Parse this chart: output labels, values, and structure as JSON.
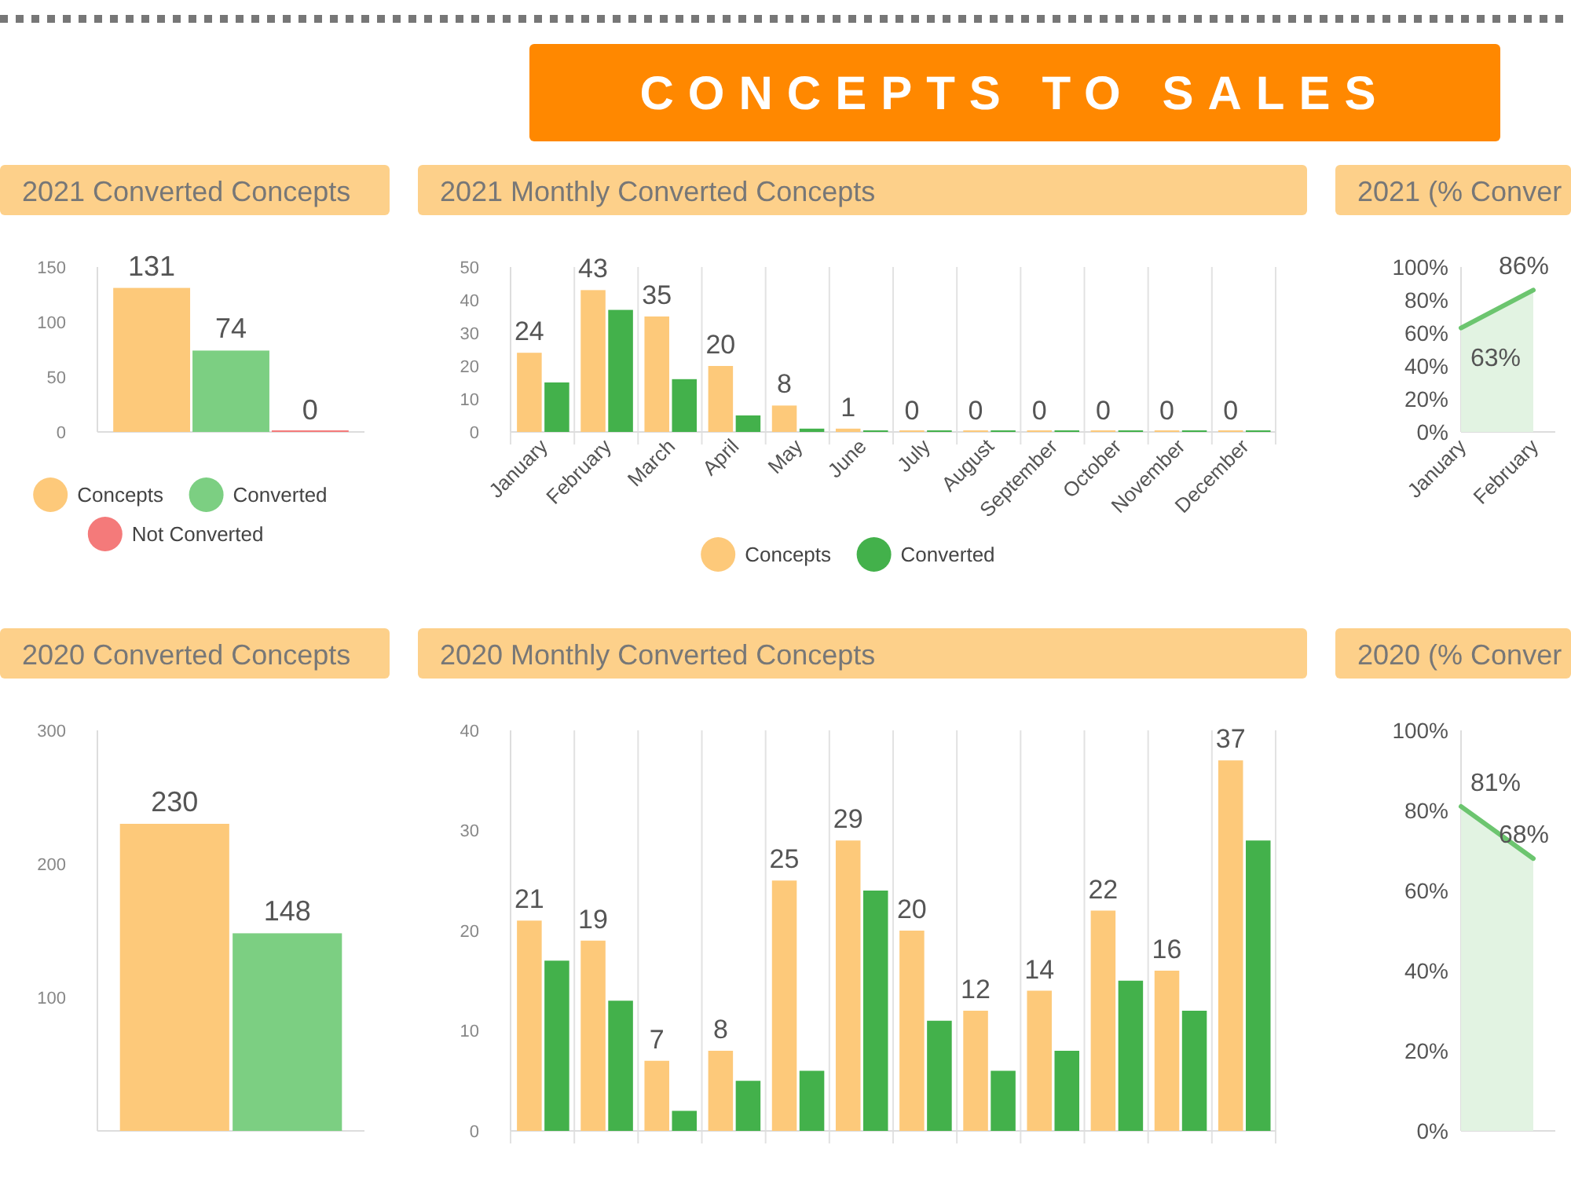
{
  "chart_data": [
    {
      "type": "other",
      "title": "CONCEPTS TO SALES"
    },
    {
      "type": "bar",
      "title": "2021 Converted Concepts",
      "categories": [
        null
      ],
      "series": [
        {
          "name": "Concepts",
          "color": "#fdc97a",
          "values": [
            131
          ],
          "value_labels": [
            "131"
          ]
        },
        {
          "name": "Converted",
          "color": "#7ccf82",
          "values": [
            74
          ],
          "value_labels": [
            "74"
          ]
        },
        {
          "name": "Not Converted",
          "color": "#f47a7a",
          "values": [
            0
          ],
          "value_labels": [
            "0"
          ]
        }
      ],
      "ylim": [
        0,
        150
      ],
      "yticks": [
        0,
        50,
        100,
        150
      ],
      "legend": "bottom"
    },
    {
      "type": "bar",
      "title": "2021 Monthly Converted Concepts",
      "categories": [
        "January",
        "February",
        "March",
        "April",
        "May",
        "June",
        "July",
        "August",
        "September",
        "October",
        "November",
        "December"
      ],
      "series": [
        {
          "name": "Concepts",
          "color": "#fdc97a",
          "values": [
            24,
            43,
            35,
            20,
            8,
            1,
            0,
            0,
            0,
            0,
            0,
            0
          ],
          "value_labels": [
            "24",
            "43",
            "35",
            "20",
            "8",
            "1",
            "0",
            "0",
            "0",
            "0",
            "0",
            "0"
          ]
        },
        {
          "name": "Converted",
          "color": "#43b14b",
          "values": [
            15,
            37,
            16,
            5,
            1,
            0,
            0,
            0,
            0,
            0,
            0,
            0
          ]
        }
      ],
      "ylim": [
        0,
        50
      ],
      "yticks": [
        0,
        10,
        20,
        30,
        40,
        50
      ],
      "grid": "x",
      "legend": "bottom"
    },
    {
      "type": "area",
      "title": "2021 (% Conver",
      "categories": [
        "January",
        "February"
      ],
      "series": [
        {
          "color": "#6cc56f",
          "values": [
            63,
            86
          ],
          "value_labels": [
            "63%",
            "86%"
          ]
        }
      ],
      "ylim": [
        0,
        100
      ],
      "yticks": [
        {
          "value": 0,
          "label": "0%"
        },
        {
          "value": 20,
          "label": "20%"
        },
        {
          "value": 40,
          "label": "40%"
        },
        {
          "value": 60,
          "label": "60%"
        },
        {
          "value": 80,
          "label": "80%"
        },
        {
          "value": 100,
          "label": "100%"
        }
      ]
    },
    {
      "type": "bar",
      "title": "2020 Converted Concepts",
      "categories": [
        null
      ],
      "series": [
        {
          "color": "#fdc97a",
          "values": [
            230
          ]
        },
        {
          "color": "#7ccf82",
          "values": [
            148
          ]
        }
      ],
      "ylim": [
        0,
        300
      ],
      "yticks": [
        100,
        200,
        300
      ],
      "data_labels": true
    },
    {
      "type": "bar",
      "title": "2020 Monthly Converted Concepts",
      "categories": [
        null,
        null,
        null,
        null,
        null,
        null,
        null,
        null,
        null,
        null,
        null,
        null
      ],
      "series": [
        {
          "color": "#fdc97a",
          "values": [
            21,
            19,
            7,
            8,
            25,
            29,
            20,
            12,
            14,
            22,
            16,
            37
          ],
          "value_labels": [
            "21",
            "19",
            "7",
            "8",
            "25",
            "29",
            "20",
            "12",
            "14",
            "22",
            "16",
            "37"
          ]
        },
        {
          "color": "#43b14b",
          "values": [
            17,
            13,
            2,
            5,
            6,
            24,
            11,
            6,
            8,
            15,
            12,
            29
          ]
        }
      ],
      "ylim": [
        0,
        40
      ],
      "yticks": [
        0,
        10,
        20,
        30,
        40
      ],
      "grid": "x"
    },
    {
      "type": "area",
      "title": "2020 (% Conver",
      "categories": [
        null,
        null
      ],
      "series": [
        {
          "color": "#6cc56f",
          "values": [
            81,
            68
          ],
          "value_labels": [
            "81%",
            "68%"
          ]
        }
      ],
      "ylim": [
        0,
        100
      ],
      "yticks": [
        {
          "value": 0,
          "label": "0%"
        },
        {
          "value": 20,
          "label": "20%"
        },
        {
          "value": 40,
          "label": "40%"
        },
        {
          "value": 60,
          "label": "60%"
        },
        {
          "value": 80,
          "label": "80%"
        },
        {
          "value": 100,
          "label": "100%"
        }
      ]
    }
  ]
}
